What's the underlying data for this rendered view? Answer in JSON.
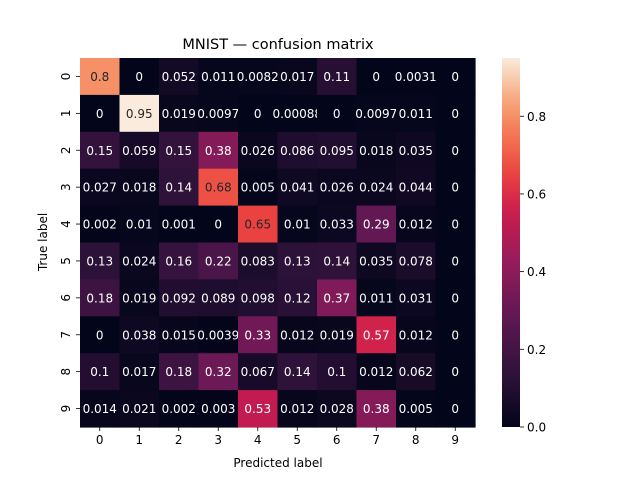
{
  "chart_data": {
    "type": "heatmap",
    "title": "MNIST — confusion matrix",
    "xlabel": "Predicted label",
    "ylabel": "True label",
    "x_categories": [
      "0",
      "1",
      "2",
      "3",
      "4",
      "5",
      "6",
      "7",
      "8",
      "9"
    ],
    "y_categories": [
      "0",
      "1",
      "2",
      "3",
      "4",
      "5",
      "6",
      "7",
      "8",
      "9"
    ],
    "cell_labels": [
      [
        "0.8",
        "0",
        "0.052",
        "0.011",
        "0.0082",
        "0.017",
        "0.11",
        "0",
        "0.0031",
        "0"
      ],
      [
        "0",
        "0.95",
        "0.019",
        "0.0097",
        "0",
        "0.00088",
        "0",
        "0.0097",
        "0.011",
        "0"
      ],
      [
        "0.15",
        "0.059",
        "0.15",
        "0.38",
        "0.026",
        "0.086",
        "0.095",
        "0.018",
        "0.035",
        "0"
      ],
      [
        "0.027",
        "0.018",
        "0.14",
        "0.68",
        "0.005",
        "0.041",
        "0.026",
        "0.024",
        "0.044",
        "0"
      ],
      [
        "0.002",
        "0.01",
        "0.001",
        "0",
        "0.65",
        "0.01",
        "0.033",
        "0.29",
        "0.012",
        "0"
      ],
      [
        "0.13",
        "0.024",
        "0.16",
        "0.22",
        "0.083",
        "0.13",
        "0.14",
        "0.035",
        "0.078",
        "0"
      ],
      [
        "0.18",
        "0.019",
        "0.092",
        "0.089",
        "0.098",
        "0.12",
        "0.37",
        "0.011",
        "0.031",
        "0"
      ],
      [
        "0",
        "0.038",
        "0.015",
        "0.0039",
        "0.33",
        "0.012",
        "0.019",
        "0.57",
        "0.012",
        "0"
      ],
      [
        "0.1",
        "0.017",
        "0.18",
        "0.32",
        "0.067",
        "0.14",
        "0.1",
        "0.012",
        "0.062",
        "0"
      ],
      [
        "0.014",
        "0.021",
        "0.002",
        "0.003",
        "0.53",
        "0.012",
        "0.028",
        "0.38",
        "0.005",
        "0"
      ]
    ],
    "values": [
      [
        0.8,
        0,
        0.052,
        0.011,
        0.0082,
        0.017,
        0.11,
        0,
        0.0031,
        0
      ],
      [
        0,
        0.95,
        0.019,
        0.0097,
        0,
        0.00088,
        0,
        0.0097,
        0.011,
        0
      ],
      [
        0.15,
        0.059,
        0.15,
        0.38,
        0.026,
        0.086,
        0.095,
        0.018,
        0.035,
        0
      ],
      [
        0.027,
        0.018,
        0.14,
        0.68,
        0.005,
        0.041,
        0.026,
        0.024,
        0.044,
        0
      ],
      [
        0.002,
        0.01,
        0.001,
        0,
        0.65,
        0.01,
        0.033,
        0.29,
        0.012,
        0
      ],
      [
        0.13,
        0.024,
        0.16,
        0.22,
        0.083,
        0.13,
        0.14,
        0.035,
        0.078,
        0
      ],
      [
        0.18,
        0.019,
        0.092,
        0.089,
        0.098,
        0.12,
        0.37,
        0.011,
        0.031,
        0
      ],
      [
        0,
        0.038,
        0.015,
        0.0039,
        0.33,
        0.012,
        0.019,
        0.57,
        0.012,
        0
      ],
      [
        0.1,
        0.017,
        0.18,
        0.32,
        0.067,
        0.14,
        0.1,
        0.012,
        0.062,
        0
      ],
      [
        0.014,
        0.021,
        0.002,
        0.003,
        0.53,
        0.012,
        0.028,
        0.38,
        0.005,
        0
      ]
    ],
    "colorbar": {
      "range": [
        0,
        0.95
      ],
      "ticks": [
        "0.0",
        "0.2",
        "0.4",
        "0.6",
        "0.8"
      ],
      "tick_values": [
        0,
        0.2,
        0.4,
        0.6,
        0.8
      ],
      "colormap": "rocket"
    }
  }
}
